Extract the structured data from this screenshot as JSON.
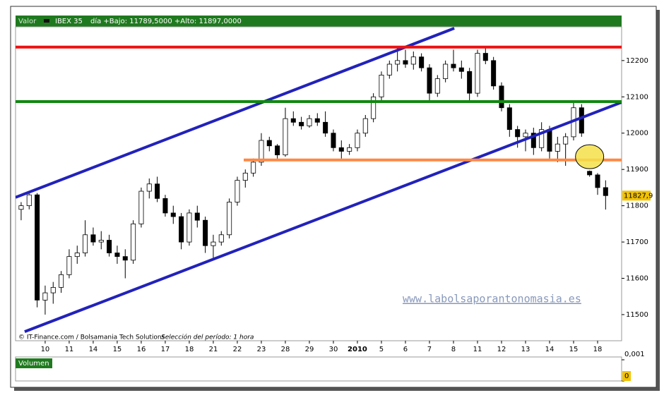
{
  "chart_data": {
    "type": "candlestick",
    "header": {
      "label": "Valor",
      "symbol": "IBEX 35",
      "info": "día +Bajo: 11789,5000 +Alto: 11897,0000"
    },
    "footer": "© IT-Finance.com / Bolsamania Tech Solutions",
    "period": "Selección del período: 1 hora",
    "watermark": "www.labolsaporantonomasia.es",
    "categories": [
      null,
      null,
      null,
      "10",
      null,
      null,
      "11",
      null,
      null,
      "14",
      null,
      null,
      "15",
      null,
      null,
      "16",
      null,
      null,
      "17",
      null,
      null,
      "18",
      null,
      null,
      "21",
      null,
      null,
      "22",
      null,
      null,
      "23",
      null,
      null,
      "28",
      null,
      null,
      "29",
      null,
      null,
      "30",
      null,
      null,
      "2010",
      null,
      null,
      "5",
      null,
      null,
      "6",
      null,
      null,
      "7",
      null,
      null,
      "8",
      null,
      null,
      "11",
      null,
      null,
      "12",
      null,
      null,
      "13",
      null,
      null,
      "14",
      null,
      null,
      "15",
      null,
      null,
      "18",
      null
    ],
    "open": [
      11790,
      11800,
      11830,
      11540,
      11560,
      11575,
      11610,
      11660,
      11670,
      11720,
      11700,
      11705,
      11670,
      11660,
      11650,
      11750,
      11840,
      11860,
      11820,
      11780,
      11770,
      11700,
      11780,
      11760,
      11690,
      11700,
      11720,
      11810,
      11870,
      11890,
      11920,
      11980,
      11965,
      11940,
      12040,
      12030,
      12020,
      12040,
      12030,
      12000,
      11960,
      11950,
      11960,
      12000,
      12040,
      12100,
      12160,
      12190,
      12200,
      12190,
      12210,
      12180,
      12110,
      12150,
      12190,
      12180,
      12170,
      12110,
      12220,
      12200,
      12130,
      12070,
      12010,
      11990,
      12000,
      11960,
      12010,
      11950,
      11970,
      11990,
      12070,
      11895,
      11885,
      11850
    ],
    "high": [
      11810,
      11840,
      11835,
      11580,
      11590,
      11620,
      11680,
      11690,
      11760,
      11740,
      11730,
      11720,
      11690,
      11680,
      11760,
      11850,
      11875,
      11880,
      11830,
      11800,
      11780,
      11790,
      11800,
      11770,
      11720,
      11730,
      11820,
      11880,
      11900,
      11930,
      12000,
      11990,
      11970,
      12070,
      12060,
      12045,
      12050,
      12055,
      12060,
      12010,
      11980,
      11970,
      12010,
      12050,
      12110,
      12170,
      12200,
      12235,
      12230,
      12225,
      12220,
      12190,
      12160,
      12200,
      12230,
      12200,
      12180,
      12230,
      12235,
      12210,
      12140,
      12080,
      12020,
      12010,
      12015,
      12030,
      12020,
      11990,
      12000,
      12085,
      12080,
      11897,
      11890,
      11870
    ],
    "low": [
      11760,
      11790,
      11520,
      11500,
      11530,
      11560,
      11600,
      11640,
      11660,
      11690,
      11680,
      11660,
      11640,
      11600,
      11640,
      11740,
      11820,
      11810,
      11770,
      11750,
      11680,
      11690,
      11740,
      11670,
      11650,
      11690,
      11710,
      11800,
      11850,
      11880,
      11910,
      11950,
      11930,
      11935,
      12020,
      12010,
      12015,
      12020,
      11990,
      11950,
      11930,
      11940,
      11950,
      11990,
      12030,
      12090,
      12150,
      12170,
      12180,
      12175,
      12170,
      12090,
      12100,
      12140,
      12170,
      12150,
      12090,
      12100,
      12190,
      12120,
      12060,
      11990,
      11960,
      11950,
      11940,
      11950,
      11930,
      11920,
      11910,
      11980,
      11990,
      11880,
      11830,
      11789.5
    ],
    "close": [
      11800,
      11830,
      11540,
      11560,
      11575,
      11610,
      11660,
      11670,
      11720,
      11700,
      11705,
      11670,
      11660,
      11650,
      11750,
      11840,
      11860,
      11820,
      11780,
      11770,
      11700,
      11780,
      11760,
      11690,
      11700,
      11720,
      11810,
      11870,
      11890,
      11920,
      11980,
      11965,
      11940,
      12040,
      12030,
      12020,
      12040,
      12030,
      12000,
      11960,
      11950,
      11960,
      12000,
      12040,
      12100,
      12160,
      12190,
      12200,
      12190,
      12210,
      12180,
      12110,
      12150,
      12190,
      12180,
      12170,
      12110,
      12220,
      12200,
      12130,
      12070,
      12010,
      11990,
      12000,
      11960,
      12010,
      11950,
      11970,
      11990,
      12070,
      12000,
      11885,
      11850,
      11827.9
    ],
    "last_price": {
      "value": 11827.9,
      "label": "11827,9"
    },
    "xlim": [
      -0.7,
      75
    ],
    "ylim": [
      11428,
      12293
    ],
    "yticks": [
      11500,
      11600,
      11700,
      11800,
      11900,
      12000,
      12100,
      12200
    ],
    "lines": [
      {
        "color": "#2222bb",
        "x": [
          -0.7,
          54.1
        ],
        "y": [
          11823,
          12289
        ]
      },
      {
        "color": "#2222bb",
        "x": [
          0.44,
          75
        ],
        "y": [
          11453,
          12085
        ]
      },
      {
        "color": "#ee1111",
        "x": [
          -0.7,
          75
        ],
        "y": [
          12237,
          12237
        ]
      },
      {
        "color": "#118811",
        "x": [
          -0.7,
          75
        ],
        "y": [
          12087,
          12087
        ]
      },
      {
        "color": "#ff8844",
        "x": [
          27.8,
          75
        ],
        "y": [
          11926,
          11926
        ]
      }
    ],
    "highlight": {
      "x": 71.0,
      "y": 11935,
      "color": "#f4e04a"
    },
    "volume": {
      "label": "Volumen",
      "ylim": [
        0,
        0.001
      ],
      "yticks": [
        {
          "value": 0.001,
          "label": "0,001"
        },
        0
      ]
    }
  }
}
